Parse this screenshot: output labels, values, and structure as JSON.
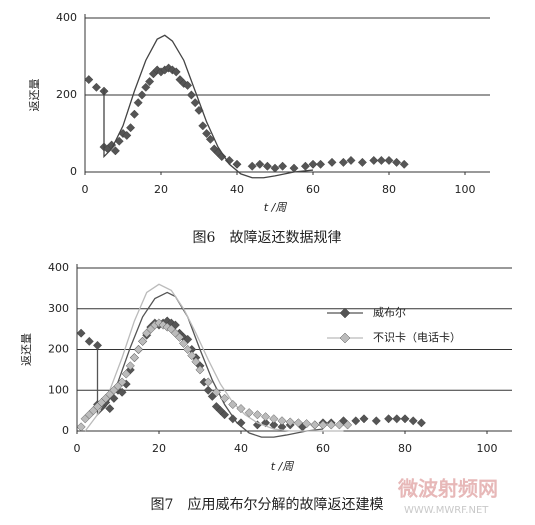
{
  "chart_data": [
    {
      "type": "line",
      "caption": "图6　故障返还数据规律",
      "y_label": "返还量",
      "x_label": "t /周",
      "xlim": [
        0,
        100
      ],
      "xticks": [
        0,
        20,
        40,
        60,
        80,
        100
      ],
      "ylim": [
        0,
        400
      ],
      "yticks": [
        0,
        200,
        400
      ],
      "grid": true,
      "series": [
        {
          "color": "#555555",
          "marker": "diamond",
          "x": [
            1,
            3,
            5,
            5,
            6,
            7,
            8,
            9,
            10,
            11,
            12,
            13,
            14,
            15,
            16,
            17,
            18,
            19,
            20,
            21,
            22,
            23,
            24,
            25,
            26,
            27,
            28,
            29,
            30,
            31,
            32,
            33,
            34,
            35,
            36,
            38,
            40,
            44,
            46,
            48,
            50,
            52,
            55,
            58,
            60,
            62,
            65,
            68,
            70,
            73,
            76,
            78,
            80,
            82,
            84
          ],
          "values": [
            240,
            220,
            210,
            65,
            60,
            70,
            55,
            80,
            100,
            95,
            115,
            150,
            180,
            200,
            220,
            235,
            255,
            265,
            260,
            265,
            270,
            265,
            260,
            240,
            230,
            225,
            200,
            180,
            160,
            120,
            100,
            85,
            60,
            50,
            40,
            30,
            20,
            15,
            20,
            15,
            10,
            15,
            10,
            15,
            20,
            20,
            25,
            25,
            30,
            25,
            30,
            30,
            30,
            25,
            20
          ]
        },
        {
          "color": "#444444",
          "marker": "none",
          "x": [
            5,
            5,
            7,
            10,
            13,
            16,
            19,
            21,
            23,
            26,
            29,
            32,
            35,
            38,
            41,
            44,
            47,
            50,
            55,
            60
          ],
          "values": [
            215,
            40,
            60,
            120,
            210,
            290,
            345,
            355,
            340,
            290,
            210,
            130,
            65,
            20,
            -5,
            -15,
            -15,
            -10,
            0,
            5
          ]
        }
      ]
    },
    {
      "type": "line",
      "caption": "图7　应用威布尔分解的故障返还建模",
      "y_label": "返还量",
      "x_label": "t /周",
      "xlim": [
        0,
        100
      ],
      "xticks": [
        0,
        20,
        40,
        60,
        80,
        100
      ],
      "ylim": [
        0,
        400
      ],
      "yticks": [
        0,
        100,
        200,
        300,
        400
      ],
      "grid": true,
      "legend": "right",
      "series": [
        {
          "name": "威布尔",
          "color": "#555555",
          "marker": "diamond",
          "x": [
            1,
            3,
            5,
            5,
            6,
            7,
            8,
            9,
            10,
            11,
            12,
            13,
            14,
            15,
            16,
            17,
            18,
            19,
            20,
            21,
            22,
            23,
            24,
            25,
            26,
            27,
            28,
            29,
            30,
            31,
            32,
            33,
            34,
            35,
            36,
            38,
            40,
            44,
            46,
            48,
            50,
            52,
            55,
            58,
            60,
            62,
            65,
            68,
            70,
            73,
            76,
            78,
            80,
            82,
            84
          ],
          "values": [
            240,
            220,
            210,
            65,
            60,
            70,
            55,
            80,
            100,
            95,
            115,
            150,
            180,
            200,
            220,
            235,
            255,
            265,
            260,
            265,
            270,
            265,
            260,
            240,
            230,
            225,
            200,
            180,
            160,
            120,
            100,
            85,
            60,
            50,
            40,
            30,
            20,
            15,
            20,
            15,
            10,
            15,
            10,
            15,
            20,
            20,
            25,
            25,
            30,
            25,
            30,
            30,
            30,
            25,
            20
          ],
          "fit": {
            "x": [
              5,
              5,
              7,
              10,
              13,
              16,
              19,
              22,
              24,
              27,
              30,
              33,
              36,
              39,
              42,
              45,
              48,
              51,
              56,
              60
            ],
            "values": [
              215,
              40,
              60,
              120,
              205,
              280,
              325,
              340,
              330,
              280,
              200,
              125,
              65,
              20,
              -5,
              -15,
              -15,
              -10,
              0,
              5
            ]
          }
        },
        {
          "name": "不识卡（电话卡）",
          "color": "#bbbbbb",
          "marker": "diamond",
          "x": [
            1,
            2,
            3,
            4,
            5,
            6,
            7,
            8,
            9,
            10,
            11,
            12,
            13,
            14,
            15,
            16,
            17,
            18,
            19,
            20,
            21,
            22,
            23,
            24,
            25,
            26,
            27,
            28,
            29,
            30,
            32,
            34,
            36,
            38,
            40,
            42,
            44,
            46,
            48,
            50,
            52,
            54,
            56,
            58,
            60,
            62,
            64,
            66
          ],
          "values": [
            10,
            30,
            40,
            50,
            60,
            70,
            80,
            90,
            100,
            110,
            120,
            140,
            160,
            180,
            200,
            220,
            240,
            250,
            260,
            265,
            260,
            255,
            250,
            240,
            230,
            215,
            200,
            185,
            170,
            150,
            120,
            95,
            80,
            65,
            55,
            45,
            40,
            35,
            30,
            25,
            22,
            20,
            18,
            15,
            15,
            15,
            15,
            15
          ],
          "fit": {
            "x": [
              2,
              5,
              8,
              11,
              14,
              17,
              20,
              23,
              26,
              29,
              32,
              35,
              38,
              41,
              44,
              48,
              52,
              56,
              60,
              65
            ],
            "values": [
              0,
              40,
              100,
              180,
              270,
              340,
              360,
              345,
              300,
              240,
              175,
              115,
              70,
              40,
              20,
              5,
              0,
              0,
              0,
              0
            ]
          }
        }
      ]
    }
  ],
  "watermark": {
    "title": "微波射频网",
    "url": "WWW.MWRF.NET"
  }
}
